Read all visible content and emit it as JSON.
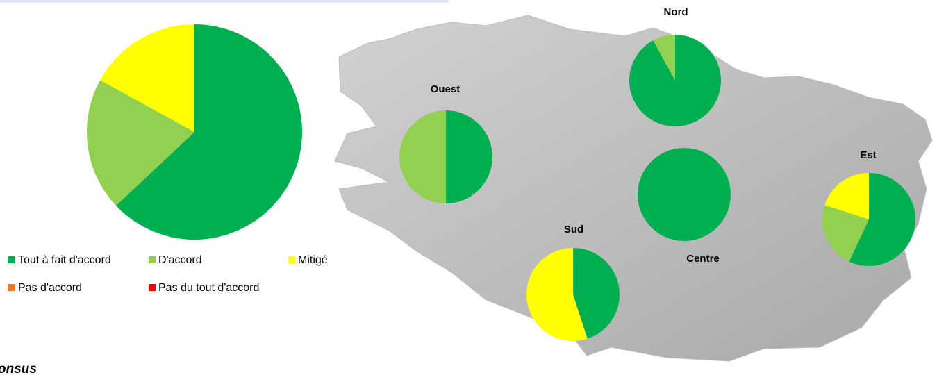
{
  "chart_data": [
    {
      "type": "pie",
      "categories": [
        "Tout à fait d'accord",
        "D'accord",
        "Mitigé",
        "Pas d'accord",
        "Pas du tout d'accord"
      ],
      "colors": [
        "#00b050",
        "#92d050",
        "#ffff00",
        "#f07820",
        "#ff0000"
      ],
      "values": [
        63,
        20,
        17,
        0,
        0
      ],
      "legend": true
    },
    {
      "type": "pie",
      "title": "Nord",
      "colors": [
        "#00b050",
        "#92d050",
        "#ffff00",
        "#f07820",
        "#ff0000"
      ],
      "values": [
        92,
        8,
        0,
        0,
        0
      ]
    },
    {
      "type": "pie",
      "title": "Ouest",
      "colors": [
        "#00b050",
        "#92d050",
        "#ffff00",
        "#f07820",
        "#ff0000"
      ],
      "values": [
        50,
        50,
        0,
        0,
        0
      ]
    },
    {
      "type": "pie",
      "title": "Centre",
      "colors": [
        "#00b050",
        "#92d050",
        "#ffff00",
        "#f07820",
        "#ff0000"
      ],
      "values": [
        100,
        0,
        0,
        0,
        0
      ]
    },
    {
      "type": "pie",
      "title": "Est",
      "colors": [
        "#00b050",
        "#92d050",
        "#ffff00",
        "#f07820",
        "#ff0000"
      ],
      "values": [
        57,
        23,
        20,
        0,
        0
      ]
    },
    {
      "type": "pie",
      "title": "Sud",
      "colors": [
        "#00b050",
        "#92d050",
        "#ffff00",
        "#f07820",
        "#ff0000"
      ],
      "values": [
        45,
        0,
        55,
        0,
        0
      ]
    }
  ],
  "footer_text": "onsus"
}
